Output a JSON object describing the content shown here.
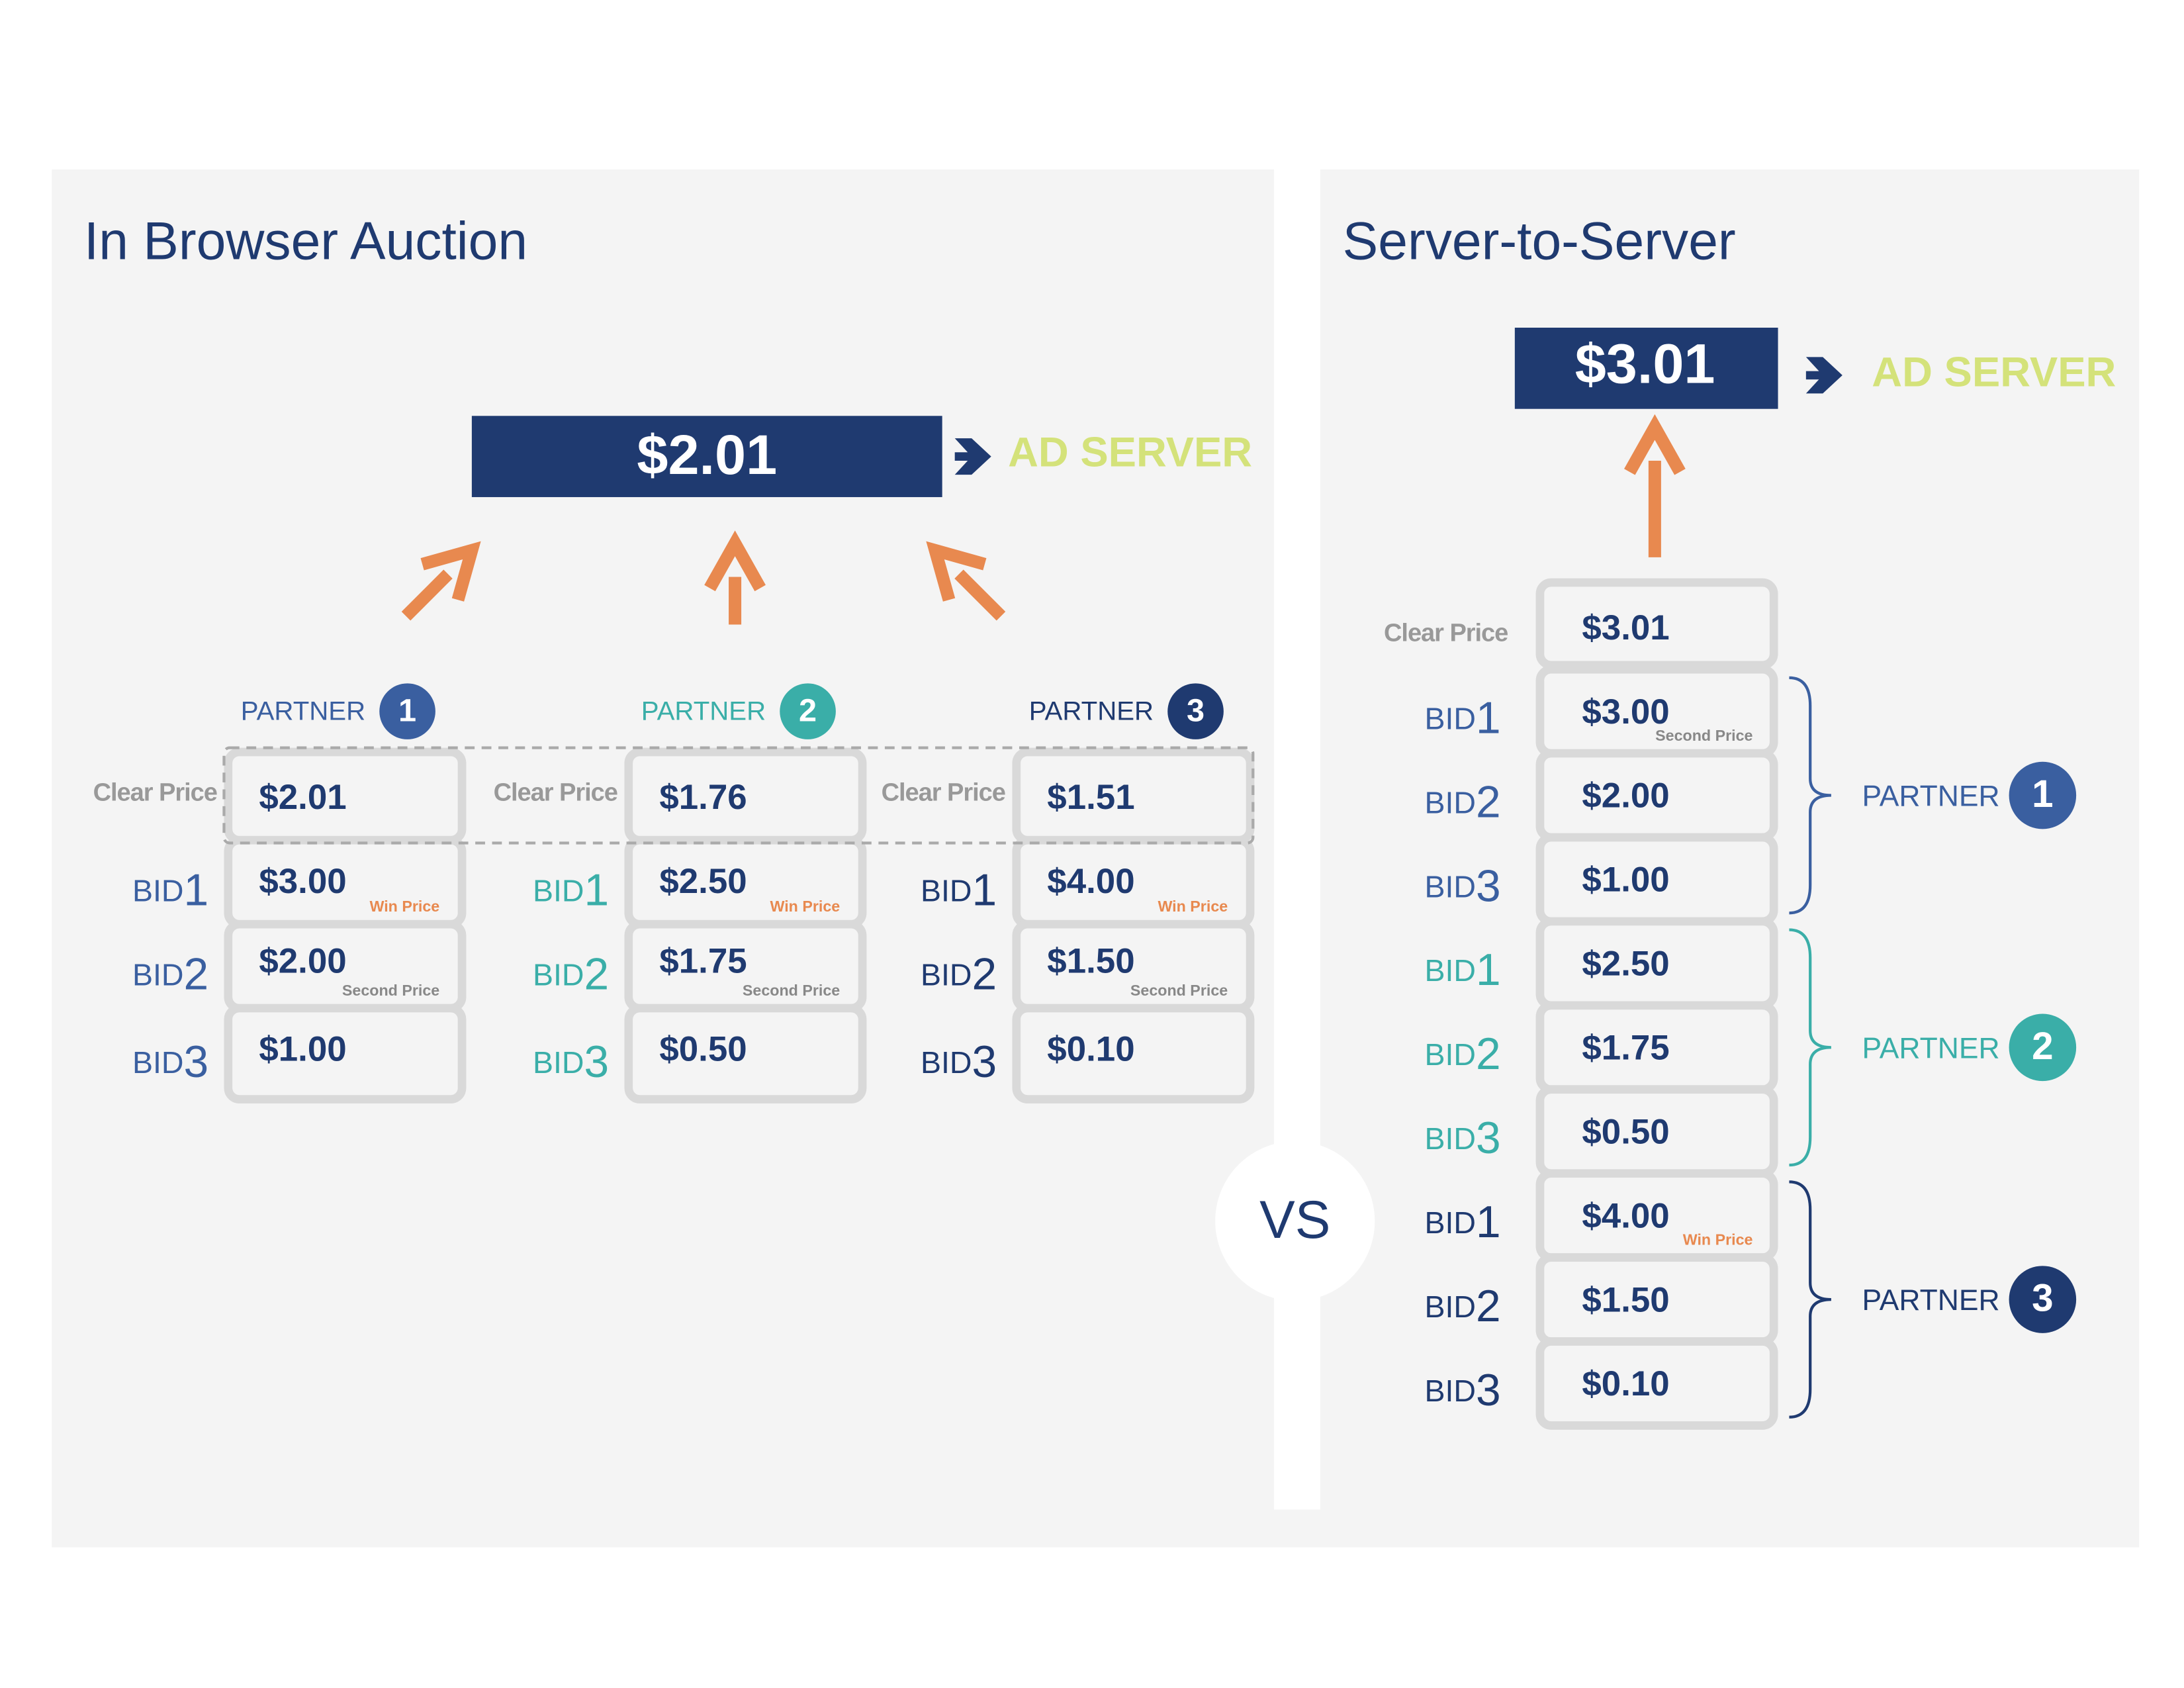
{
  "left": {
    "title": "In Browser Auction",
    "result": "$2.01",
    "destination": "AD SERVER",
    "partners": [
      {
        "label": "PARTNER",
        "number": "1",
        "clear_label": "Clear Price",
        "clear_price": "$2.01",
        "bids": [
          {
            "label": "BID",
            "rank": "1",
            "price": "$3.00",
            "note": "Win Price"
          },
          {
            "label": "BID",
            "rank": "2",
            "price": "$2.00",
            "note": "Second Price"
          },
          {
            "label": "BID",
            "rank": "3",
            "price": "$1.00"
          }
        ]
      },
      {
        "label": "PARTNER",
        "number": "2",
        "clear_label": "Clear Price",
        "clear_price": "$1.76",
        "bids": [
          {
            "label": "BID",
            "rank": "1",
            "price": "$2.50",
            "note": "Win Price"
          },
          {
            "label": "BID",
            "rank": "2",
            "price": "$1.75",
            "note": "Second Price"
          },
          {
            "label": "BID",
            "rank": "3",
            "price": "$0.50"
          }
        ]
      },
      {
        "label": "PARTNER",
        "number": "3",
        "clear_label": "Clear Price",
        "clear_price": "$1.51",
        "bids": [
          {
            "label": "BID",
            "rank": "1",
            "price": "$4.00",
            "note": "Win Price"
          },
          {
            "label": "BID",
            "rank": "2",
            "price": "$1.50",
            "note": "Second Price"
          },
          {
            "label": "BID",
            "rank": "3",
            "price": "$0.10"
          }
        ]
      }
    ]
  },
  "vs": "VS",
  "right": {
    "title": "Server-to-Server",
    "result": "$3.01",
    "destination": "AD SERVER",
    "clear_label": "Clear Price",
    "clear_price": "$3.01",
    "partners": [
      {
        "label": "PARTNER",
        "number": "1",
        "bids": [
          {
            "label": "BID",
            "rank": "1",
            "price": "$3.00",
            "note": "Second Price"
          },
          {
            "label": "BID",
            "rank": "2",
            "price": "$2.00"
          },
          {
            "label": "BID",
            "rank": "3",
            "price": "$1.00"
          }
        ]
      },
      {
        "label": "PARTNER",
        "number": "2",
        "bids": [
          {
            "label": "BID",
            "rank": "1",
            "price": "$2.50"
          },
          {
            "label": "BID",
            "rank": "2",
            "price": "$1.75"
          },
          {
            "label": "BID",
            "rank": "3",
            "price": "$0.50"
          }
        ]
      },
      {
        "label": "PARTNER",
        "number": "3",
        "bids": [
          {
            "label": "BID",
            "rank": "1",
            "price": "$4.00",
            "note": "Win Price"
          },
          {
            "label": "BID",
            "rank": "2",
            "price": "$1.50"
          },
          {
            "label": "BID",
            "rank": "3",
            "price": "$0.10"
          }
        ]
      }
    ]
  }
}
